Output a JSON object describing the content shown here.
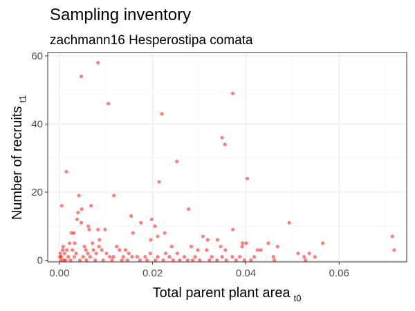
{
  "chart_data": {
    "type": "scatter",
    "title": "Sampling inventory",
    "subtitle": "zachmann16 Hesperostipa comata",
    "xlabel": "Total parent plant area",
    "xlabel_subscript": "t0",
    "ylabel": "Number of recruits",
    "ylabel_subscript": "t1",
    "xlim": [
      -0.0025,
      0.0745
    ],
    "ylim": [
      -0.5,
      61
    ],
    "x_ticks": [
      0,
      0.02,
      0.04,
      0.06
    ],
    "x_tick_labels": [
      "0.00",
      "0.02",
      "0.04",
      "0.06"
    ],
    "y_ticks": [
      0,
      20,
      40,
      60
    ],
    "y_tick_labels": [
      "0",
      "20",
      "40",
      "60"
    ],
    "grid": true,
    "point_color": "#ff0000",
    "point_opacity": 0.5,
    "points": [
      [
        0.0083,
        58
      ],
      [
        0.0047,
        54
      ],
      [
        0.0372,
        49
      ],
      [
        0.0105,
        46
      ],
      [
        0.022,
        43
      ],
      [
        0.0349,
        36
      ],
      [
        0.0355,
        34
      ],
      [
        0.0252,
        29
      ],
      [
        0.0015,
        26
      ],
      [
        0.0403,
        24
      ],
      [
        0.0214,
        23
      ],
      [
        0.0042,
        19
      ],
      [
        0.0117,
        19
      ],
      [
        0.0005,
        16
      ],
      [
        0.0068,
        16
      ],
      [
        0.0277,
        15
      ],
      [
        0.0048,
        15
      ],
      [
        0.004,
        14
      ],
      [
        0.0038,
        12
      ],
      [
        0.0154,
        13
      ],
      [
        0.0047,
        11
      ],
      [
        0.0493,
        11
      ],
      [
        0.0175,
        11
      ],
      [
        0.0198,
        12
      ],
      [
        0.0062,
        10
      ],
      [
        0.0205,
        10
      ],
      [
        0.0158,
        8
      ],
      [
        0.0226,
        8
      ],
      [
        0.0083,
        9
      ],
      [
        0.0098,
        9
      ],
      [
        0.0064,
        9
      ],
      [
        0.0211,
        7
      ],
      [
        0.0308,
        7
      ],
      [
        0.0372,
        9
      ],
      [
        0.0714,
        7
      ],
      [
        0.0196,
        6
      ],
      [
        0.0318,
        6
      ],
      [
        0.0339,
        6
      ],
      [
        0.0401,
        5
      ],
      [
        0.0565,
        5
      ],
      [
        0.0448,
        5
      ],
      [
        0.0393,
        5
      ],
      [
        0.0086,
        6
      ],
      [
        0.0026,
        8
      ],
      [
        0.0031,
        8
      ],
      [
        0.0071,
        5
      ],
      [
        0.0054,
        4
      ],
      [
        0.0085,
        4
      ],
      [
        0.0123,
        4
      ],
      [
        0.0008,
        4
      ],
      [
        0.0022,
        5
      ],
      [
        0.0033,
        5
      ],
      [
        0.0241,
        4
      ],
      [
        0.0283,
        4
      ],
      [
        0.0346,
        4
      ],
      [
        0.0392,
        4
      ],
      [
        0.0432,
        3
      ],
      [
        0.0468,
        4
      ],
      [
        0.0028,
        3
      ],
      [
        0.0057,
        3
      ],
      [
        0.0073,
        3
      ],
      [
        0.0091,
        3
      ],
      [
        0.0129,
        3
      ],
      [
        0.0142,
        3
      ],
      [
        0.0195,
        2
      ],
      [
        0.0228,
        2
      ],
      [
        0.0253,
        2
      ],
      [
        0.0297,
        3
      ],
      [
        0.0316,
        3
      ],
      [
        0.0356,
        3
      ],
      [
        0.0425,
        3
      ],
      [
        0.0718,
        3
      ],
      [
        0.0512,
        2
      ],
      [
        0.0536,
        2
      ],
      [
        0.0002,
        2
      ],
      [
        0.0011,
        2
      ],
      [
        0.0019,
        1
      ],
      [
        0.0036,
        2
      ],
      [
        0.0061,
        2
      ],
      [
        0.0079,
        2
      ],
      [
        0.0101,
        2
      ],
      [
        0.0116,
        1
      ],
      [
        0.0137,
        1
      ],
      [
        0.0149,
        2
      ],
      [
        0.0167,
        1
      ],
      [
        0.0184,
        1
      ],
      [
        0.0211,
        1
      ],
      [
        0.0236,
        1
      ],
      [
        0.0268,
        1
      ],
      [
        0.0291,
        1
      ],
      [
        0.0327,
        1
      ],
      [
        0.0349,
        1
      ],
      [
        0.0371,
        1
      ],
      [
        0.0387,
        1
      ],
      [
        0.0418,
        1
      ],
      [
        0.0459,
        1
      ],
      [
        0.0525,
        1
      ],
      [
        0.0548,
        1
      ],
      [
        0.0003,
        0
      ],
      [
        0.0013,
        0
      ],
      [
        0.0024,
        0
      ],
      [
        0.0044,
        0
      ],
      [
        0.0058,
        0
      ],
      [
        0.0077,
        0
      ],
      [
        0.0094,
        0
      ],
      [
        0.0113,
        0
      ],
      [
        0.0134,
        0
      ],
      [
        0.0146,
        0
      ],
      [
        0.0173,
        0
      ],
      [
        0.0188,
        0
      ],
      [
        0.0206,
        0
      ],
      [
        0.0223,
        0
      ],
      [
        0.0244,
        0
      ],
      [
        0.0258,
        0
      ],
      [
        0.0275,
        0
      ],
      [
        0.0286,
        0
      ],
      [
        0.0301,
        0
      ],
      [
        0.0322,
        0
      ],
      [
        0.0338,
        0
      ],
      [
        0.0358,
        0
      ],
      [
        0.0379,
        0
      ],
      [
        0.0397,
        0
      ],
      [
        0.0411,
        0
      ],
      [
        0.0461,
        0
      ],
      [
        0.0528,
        0
      ],
      [
        0.0001,
        1
      ],
      [
        0.0007,
        3
      ],
      [
        0.0016,
        3
      ],
      [
        0.0004,
        1
      ],
      [
        0.0009,
        0
      ],
      [
        0.0032,
        1
      ],
      [
        0.0051,
        1
      ],
      [
        0.0066,
        1
      ],
      [
        0.0108,
        1
      ],
      [
        0.0156,
        1
      ]
    ]
  }
}
